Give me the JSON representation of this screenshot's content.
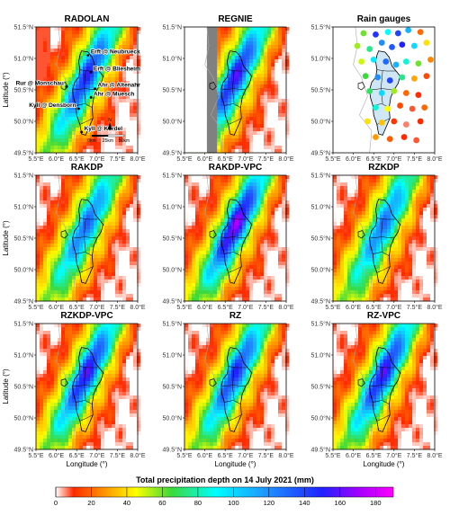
{
  "chart_data": {
    "type": "heatmap",
    "description_units": "Total precipitation depth on 14 July 2021 (mm)",
    "panels": [
      {
        "id": "radolan",
        "title": "RADOLAN",
        "kind": "field",
        "peak_mm": 140,
        "has_sites": true
      },
      {
        "id": "regnie",
        "title": "REGNIE",
        "kind": "field",
        "peak_mm": 150,
        "has_mask": true
      },
      {
        "id": "gauges",
        "title": "Rain gauges",
        "kind": "points"
      },
      {
        "id": "rakdp",
        "title": "RAKDP",
        "kind": "field",
        "peak_mm": 110
      },
      {
        "id": "rakdp_vpc",
        "title": "RAKDP-VPC",
        "kind": "field",
        "peak_mm": 170
      },
      {
        "id": "rzkdp",
        "title": "RZKDP",
        "kind": "field",
        "peak_mm": 105
      },
      {
        "id": "rzkdp_vpc",
        "title": "RZKDP-VPC",
        "kind": "field",
        "peak_mm": 150
      },
      {
        "id": "rz",
        "title": "RZ",
        "kind": "field",
        "peak_mm": 135
      },
      {
        "id": "rz_vpc",
        "title": "RZ-VPC",
        "kind": "field",
        "peak_mm": 150
      }
    ],
    "x_ticks": [
      "5.5°E",
      "6.0°E",
      "6.5°E",
      "7.0°E",
      "7.5°E",
      "8.0°E"
    ],
    "y_ticks": [
      "51.5°N",
      "51.0°N",
      "50.5°N",
      "50.0°N",
      "49.5°N"
    ],
    "xlim": [
      5.5,
      8.0
    ],
    "ylim": [
      49.5,
      51.5
    ],
    "xlabel": "Longitude (°)",
    "ylabel": "Latitude (°)",
    "sites": [
      {
        "name": "Erft @ Neubrueck",
        "lon": 6.78,
        "lat": 51.05
      },
      {
        "name": "Erft @ Bliesheim",
        "lon": 6.85,
        "lat": 50.78
      },
      {
        "name": "Ahr @ Altenahr",
        "lon": 6.95,
        "lat": 50.52
      },
      {
        "name": "Rur @ Monschau",
        "lon": 6.25,
        "lat": 50.55
      },
      {
        "name": "Kyll @ Densborn",
        "lon": 6.55,
        "lat": 50.2
      },
      {
        "name": "Ahr @ Muesch",
        "lon": 6.85,
        "lat": 50.38
      },
      {
        "name": "Kyll @ Kordel",
        "lon": 6.62,
        "lat": 49.83
      }
    ],
    "scale_bar": {
      "labels": [
        "0km",
        "25km",
        "50km"
      ]
    },
    "north_label": "N",
    "gauges": [
      {
        "lon": 6.25,
        "lat": 51.4,
        "v": 60
      },
      {
        "lon": 6.55,
        "lat": 51.38,
        "v": 145
      },
      {
        "lon": 6.85,
        "lat": 51.42,
        "v": 90
      },
      {
        "lon": 7.1,
        "lat": 51.4,
        "v": 140
      },
      {
        "lon": 7.35,
        "lat": 51.45,
        "v": 110
      },
      {
        "lon": 7.65,
        "lat": 51.42,
        "v": 20
      },
      {
        "lon": 6.1,
        "lat": 51.2,
        "v": 55
      },
      {
        "lon": 6.4,
        "lat": 51.15,
        "v": 75
      },
      {
        "lon": 6.7,
        "lat": 51.25,
        "v": 120
      },
      {
        "lon": 6.95,
        "lat": 51.18,
        "v": 135
      },
      {
        "lon": 7.2,
        "lat": 51.22,
        "v": 150
      },
      {
        "lon": 7.5,
        "lat": 51.2,
        "v": 100
      },
      {
        "lon": 7.8,
        "lat": 51.25,
        "v": 40
      },
      {
        "lon": 6.2,
        "lat": 50.95,
        "v": 50
      },
      {
        "lon": 6.5,
        "lat": 50.98,
        "v": 95
      },
      {
        "lon": 6.8,
        "lat": 50.95,
        "v": 130
      },
      {
        "lon": 7.05,
        "lat": 50.9,
        "v": 110
      },
      {
        "lon": 7.3,
        "lat": 50.95,
        "v": 85
      },
      {
        "lon": 7.6,
        "lat": 50.92,
        "v": 60
      },
      {
        "lon": 7.9,
        "lat": 50.98,
        "v": 25
      },
      {
        "lon": 6.3,
        "lat": 50.72,
        "v": 65
      },
      {
        "lon": 6.6,
        "lat": 50.7,
        "v": 120
      },
      {
        "lon": 6.9,
        "lat": 50.65,
        "v": 140
      },
      {
        "lon": 7.2,
        "lat": 50.7,
        "v": 75
      },
      {
        "lon": 7.5,
        "lat": 50.68,
        "v": 30
      },
      {
        "lon": 7.8,
        "lat": 50.72,
        "v": 15
      },
      {
        "lon": 6.4,
        "lat": 50.48,
        "v": 70
      },
      {
        "lon": 6.7,
        "lat": 50.45,
        "v": 100
      },
      {
        "lon": 7.0,
        "lat": 50.48,
        "v": 55
      },
      {
        "lon": 7.3,
        "lat": 50.45,
        "v": 20
      },
      {
        "lon": 7.6,
        "lat": 50.42,
        "v": 10
      },
      {
        "lon": 6.55,
        "lat": 50.22,
        "v": 85
      },
      {
        "lon": 6.85,
        "lat": 50.2,
        "v": 45
      },
      {
        "lon": 7.15,
        "lat": 50.25,
        "v": 15
      },
      {
        "lon": 7.45,
        "lat": 50.2,
        "v": 8
      },
      {
        "lon": 7.75,
        "lat": 50.22,
        "v": 20
      },
      {
        "lon": 6.35,
        "lat": 50.0,
        "v": 40
      },
      {
        "lon": 6.7,
        "lat": 49.98,
        "v": 35
      },
      {
        "lon": 7.0,
        "lat": 50.0,
        "v": 12
      },
      {
        "lon": 7.3,
        "lat": 49.95,
        "v": 6
      },
      {
        "lon": 7.65,
        "lat": 50.0,
        "v": 10
      },
      {
        "lon": 6.55,
        "lat": 49.75,
        "v": 28
      },
      {
        "lon": 6.9,
        "lat": 49.72,
        "v": 18
      },
      {
        "lon": 7.25,
        "lat": 49.75,
        "v": 10
      },
      {
        "lon": 7.55,
        "lat": 49.7,
        "v": 8
      }
    ],
    "colorbar": {
      "title": "Total precipitation depth on 14 July 2021 (mm)",
      "ticks": [
        0,
        20,
        40,
        60,
        80,
        100,
        120,
        140,
        160,
        180
      ],
      "range": [
        0,
        190
      ],
      "stops": [
        {
          "v": 0,
          "c": "#ffffff"
        },
        {
          "v": 10,
          "c": "#ff2a00"
        },
        {
          "v": 30,
          "c": "#ffa500"
        },
        {
          "v": 45,
          "c": "#ffff00"
        },
        {
          "v": 65,
          "c": "#3cd93c"
        },
        {
          "v": 90,
          "c": "#00ffff"
        },
        {
          "v": 120,
          "c": "#1e8fff"
        },
        {
          "v": 150,
          "c": "#2020ff"
        },
        {
          "v": 170,
          "c": "#a000ff"
        },
        {
          "v": 190,
          "c": "#ff00ff"
        }
      ]
    }
  }
}
